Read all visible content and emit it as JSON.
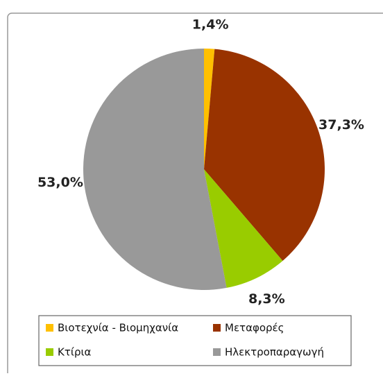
{
  "chart_data": {
    "type": "pie",
    "categories": [
      "Βιοτεχνία - Βιομηχανία",
      "Μεταφορές",
      "Κτίρια",
      "Ηλεκτροπαραγωγή"
    ],
    "values": [
      1.4,
      37.3,
      8.3,
      53.0
    ],
    "value_labels": [
      "1,4%",
      "37,3%",
      "8,3%",
      "53,0%"
    ],
    "colors": [
      "#FFC000",
      "#993300",
      "#99CC00",
      "#999999"
    ]
  }
}
